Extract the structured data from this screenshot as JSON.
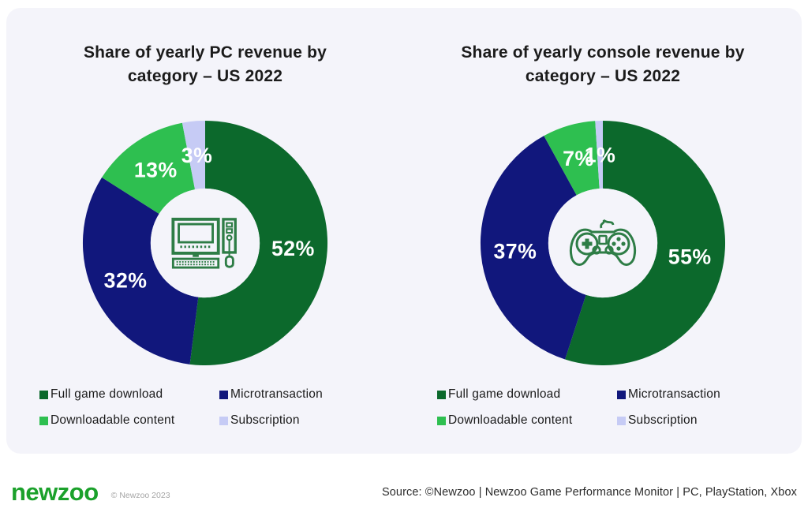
{
  "page": {
    "background": "#ffffff",
    "card_background": "#f4f4fa"
  },
  "colors": {
    "full_game_download": "#0c692c",
    "microtransaction": "#11177c",
    "downloadable_content": "#2ebf50",
    "subscription": "#c6cbf5",
    "icon_green": "#2e7d46",
    "logo_green": "#1ba12b",
    "title_text": "#1b1b1b"
  },
  "chart_data": [
    {
      "type": "pie",
      "title": "Share of yearly PC revenue by category – US 2022",
      "donut": true,
      "start_angle_deg": 0,
      "direction": "clockwise",
      "center_icon": "desktop-pc-icon",
      "categories": [
        "Full game download",
        "Microtransaction",
        "Downloadable content",
        "Subscription"
      ],
      "values": [
        52,
        32,
        13,
        3
      ],
      "labels": [
        "52%",
        "32%",
        "13%",
        "3%"
      ],
      "colors": [
        "#0c692c",
        "#11177c",
        "#2ebf50",
        "#c6cbf5"
      ],
      "legend_position": "bottom"
    },
    {
      "type": "pie",
      "title": "Share of yearly console revenue by category – US 2022",
      "donut": true,
      "start_angle_deg": 0,
      "direction": "clockwise",
      "center_icon": "game-controller-icon",
      "categories": [
        "Full game download",
        "Microtransaction",
        "Downloadable content",
        "Subscription"
      ],
      "values": [
        55,
        37,
        7,
        1
      ],
      "labels": [
        "55%",
        "37%",
        "7%",
        "1%"
      ],
      "colors": [
        "#0c692c",
        "#11177c",
        "#2ebf50",
        "#c6cbf5"
      ],
      "legend_position": "bottom"
    }
  ],
  "legend": {
    "items": [
      {
        "label": "Full game download",
        "color": "#0c692c"
      },
      {
        "label": "Microtransaction",
        "color": "#11177c"
      },
      {
        "label": "Downloadable content",
        "color": "#2ebf50"
      },
      {
        "label": "Subscription",
        "color": "#c6cbf5"
      }
    ]
  },
  "footer": {
    "logo_text": "newzoo",
    "copyright": "© Newzoo 2023",
    "source": "Source: ©Newzoo | Newzoo Game Performance Monitor | PC, PlayStation, Xbox"
  }
}
